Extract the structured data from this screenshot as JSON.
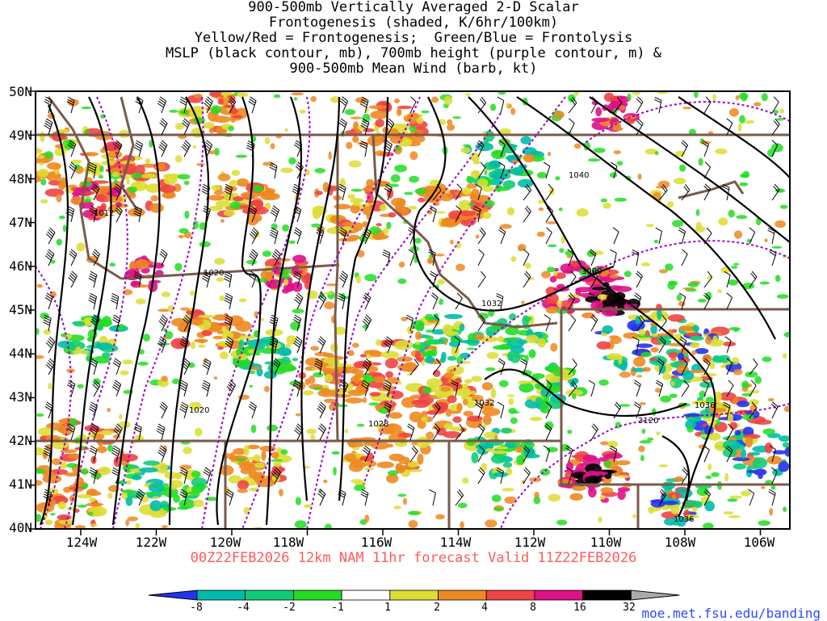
{
  "title_lines": [
    "900-500mb Vertically Averaged 2-D Scalar",
    "Frontogenesis (shaded, K/6hr/100km)",
    "Yellow/Red = Frontogenesis;  Green/Blue = Frontolysis",
    "MSLP (black contour, mb), 700mb height (purple contour, m) &",
    "900-500mb Mean Wind (barb, kt)"
  ],
  "lat_labels": [
    "50N",
    "49N",
    "48N",
    "47N",
    "46N",
    "45N",
    "44N",
    "43N",
    "42N",
    "41N",
    "40N"
  ],
  "lon_labels": [
    "124W",
    "122W",
    "120W",
    "118W",
    "116W",
    "114W",
    "112W",
    "110W",
    "108W",
    "106W"
  ],
  "contour_labels": [
    "1012",
    "1020",
    "1020",
    "1028",
    "1032",
    "1032",
    "1040",
    "3090",
    "3120",
    "1036",
    "1036"
  ],
  "valid_text": "00Z22FEB2026 12km NAM 11hr forecast Valid 11Z22FEB2026",
  "colorbar": {
    "tick_labels": [
      "-8",
      "-4",
      "-2",
      "-1",
      "1",
      "2",
      "4",
      "8",
      "16",
      "32"
    ],
    "colors": [
      "#2233ee",
      "#00bbaa",
      "#11cc77",
      "#22dd22",
      "#ffffff",
      "#dddd33",
      "#ee8822",
      "#ee4444",
      "#dd1188",
      "#000000",
      "#aaaaaa"
    ]
  },
  "site_url": "moe.met.fsu.edu/banding",
  "map_colors": {
    "mslp": "#000000",
    "height700": "#9900cc",
    "borders": "#7a5a4a"
  }
}
